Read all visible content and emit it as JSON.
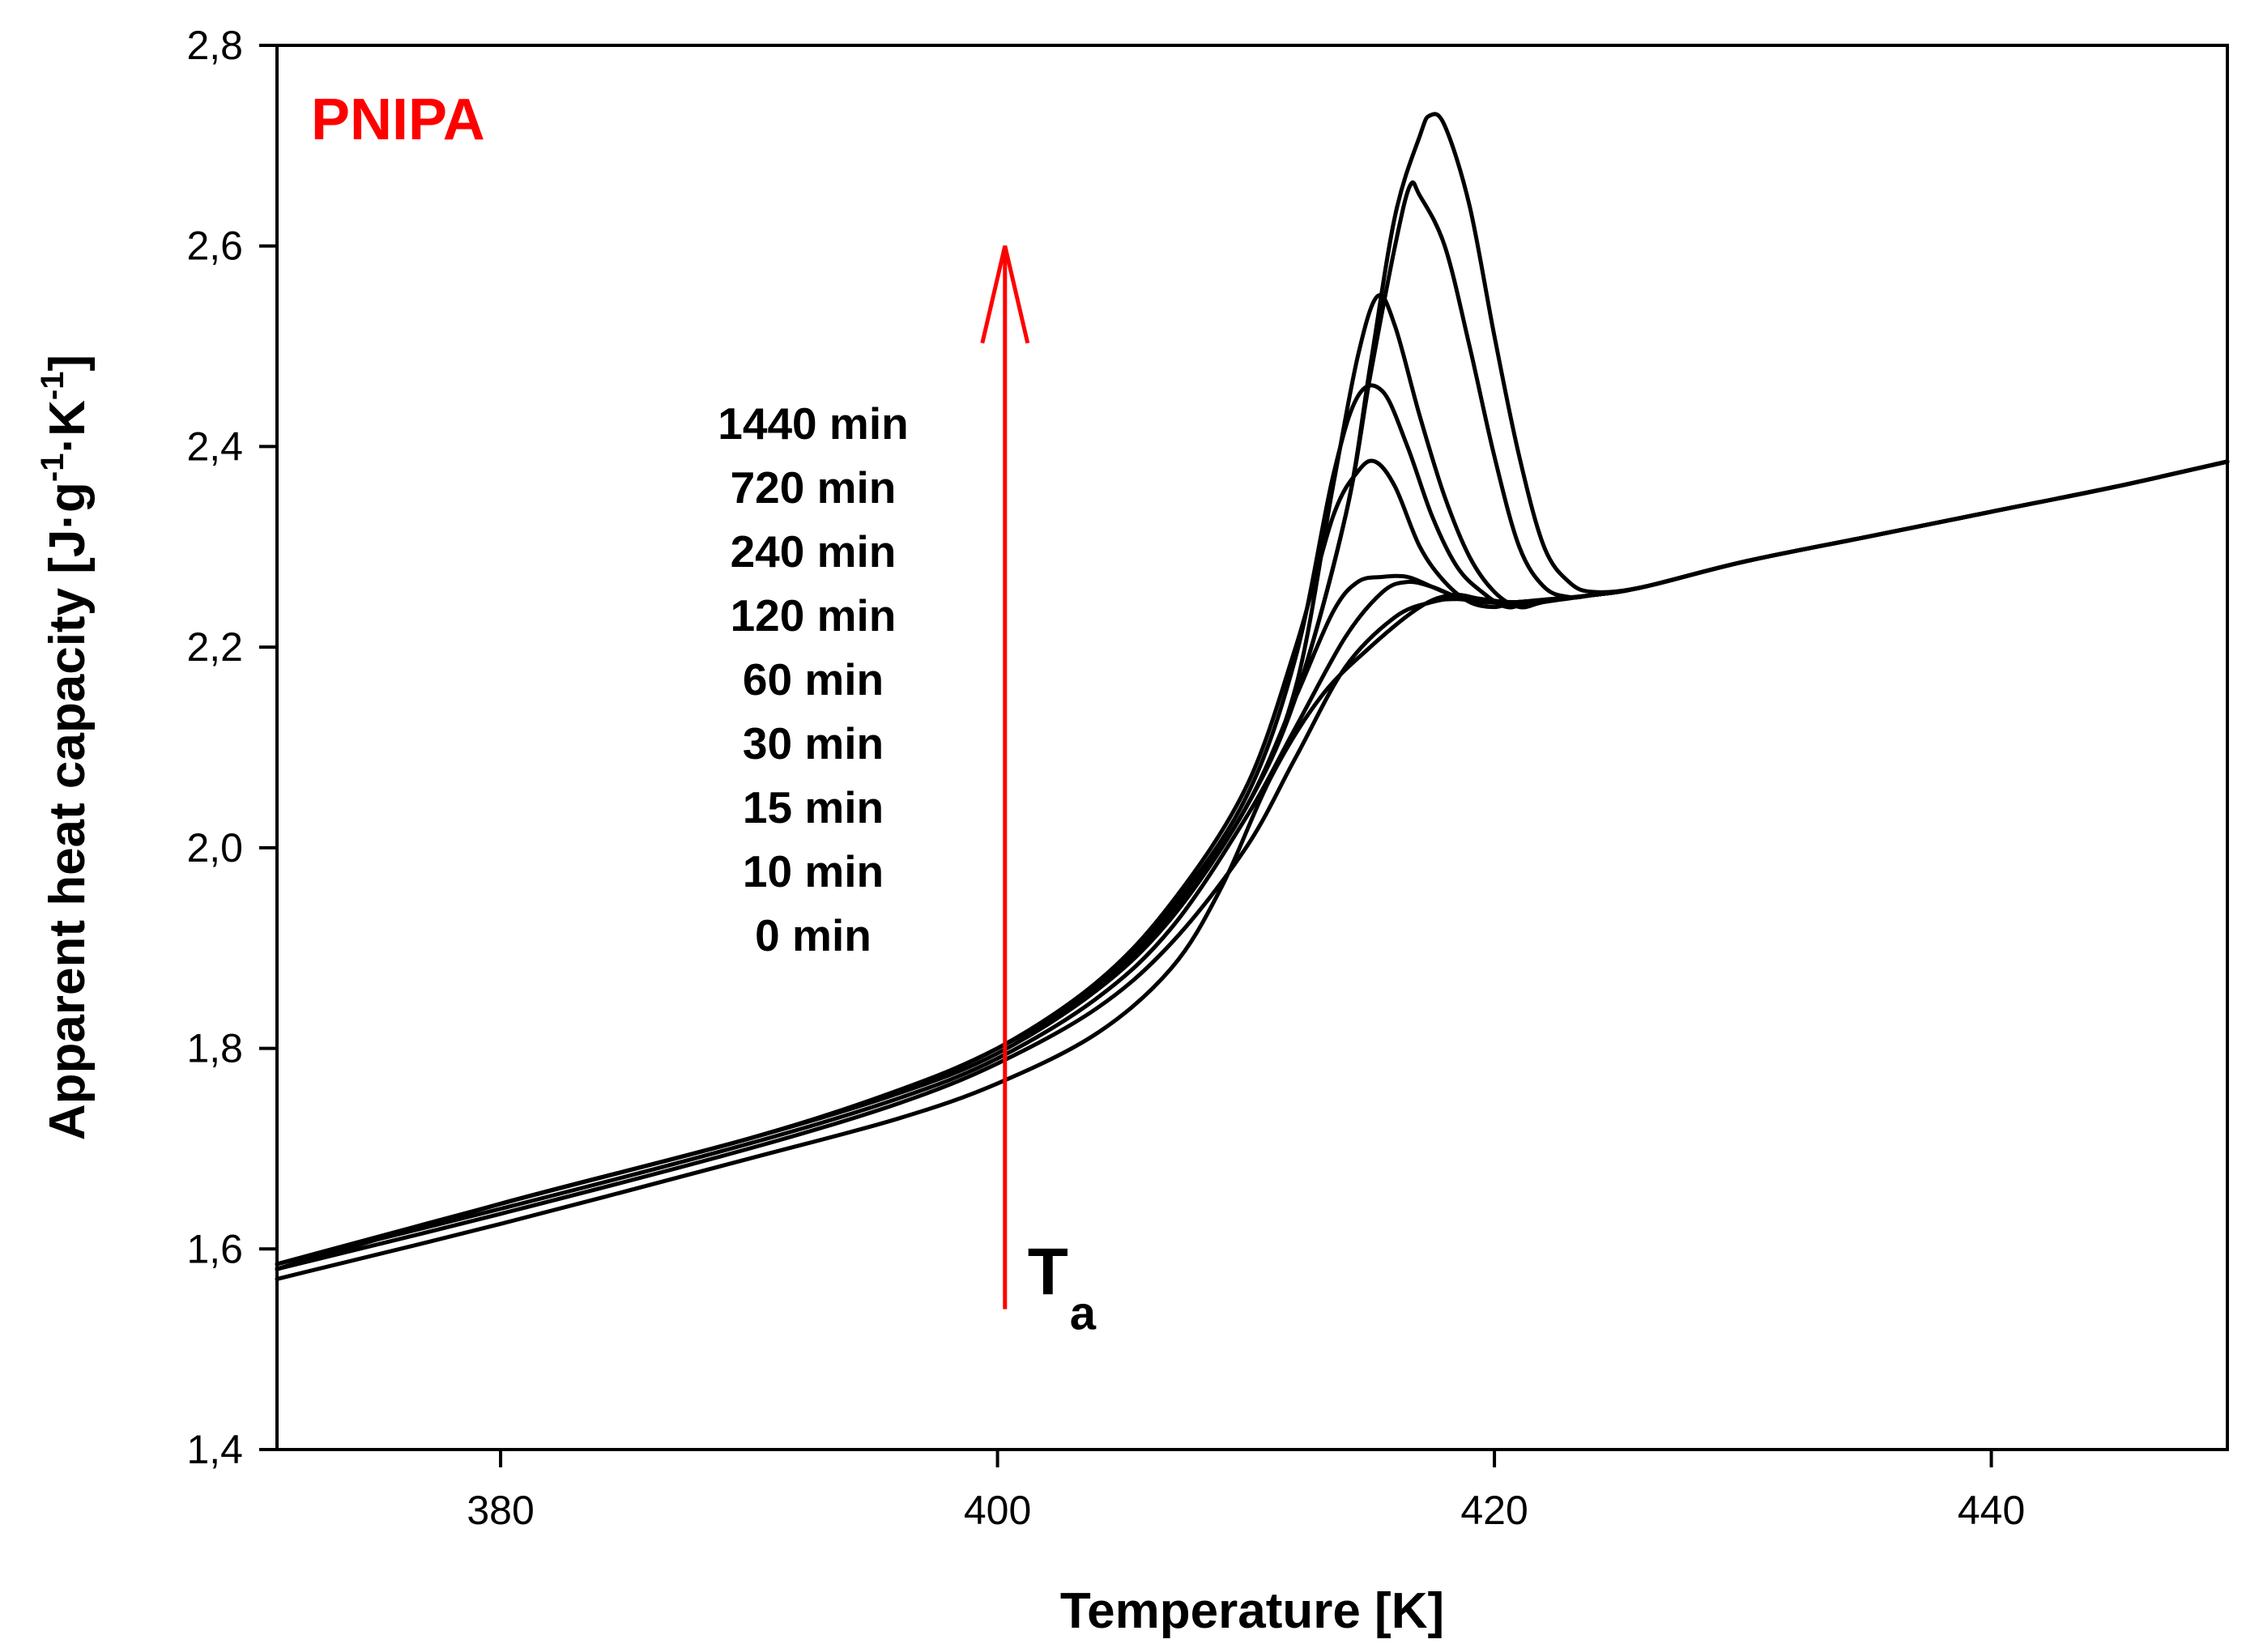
{
  "chart_data": {
    "type": "line",
    "title": "PNIPA",
    "title_color": "#ff0000",
    "xlabel": "Temperature [K]",
    "ylabel_parts": {
      "main": "Apparent heat capacity [J·g",
      "sup1": "-1",
      "mid": "·K",
      "sup2": "-1",
      "end": "]"
    },
    "xlim": [
      371,
      449.5
    ],
    "ylim": [
      1.4,
      2.8
    ],
    "x_ticks": [
      380,
      400,
      420,
      440
    ],
    "x_tick_labels": [
      "380",
      "400",
      "420",
      "440"
    ],
    "y_ticks": [
      1.4,
      1.6,
      1.8,
      2.0,
      2.2,
      2.4,
      2.6,
      2.8
    ],
    "y_tick_labels": [
      "1,4",
      "1,6",
      "1,8",
      "2,0",
      "2,2",
      "2,4",
      "2,6",
      "2,8"
    ],
    "grid": false,
    "legend_entries": [
      "1440 min",
      "720 min",
      "240 min",
      "120 min",
      "60 min",
      "30 min",
      "15 min",
      "10 min",
      "0 min"
    ],
    "annotation": {
      "label": "T",
      "subscript": "a",
      "arrow_color": "#ff0000",
      "arrow_x": 400.3,
      "arrow_y_from": 1.54,
      "arrow_y_to": 2.6
    },
    "series": [
      {
        "name": "1440 min",
        "x": [
          371,
          380,
          390,
          396,
          400,
          404,
          407,
          410,
          412,
          414,
          415,
          416,
          417,
          417.4,
          418,
          419,
          420,
          421,
          422,
          423,
          424,
          426,
          430,
          435,
          440,
          445,
          449.5
        ],
        "y": [
          1.58,
          1.645,
          1.71,
          1.758,
          1.8,
          1.86,
          1.93,
          2.04,
          2.15,
          2.33,
          2.48,
          2.63,
          2.71,
          2.73,
          2.72,
          2.64,
          2.51,
          2.39,
          2.3,
          2.265,
          2.255,
          2.26,
          2.285,
          2.31,
          2.335,
          2.36,
          2.385
        ]
      },
      {
        "name": "720 min",
        "x": [
          371,
          380,
          390,
          396,
          400,
          404,
          407,
          410,
          412,
          414,
          415,
          416,
          416.6,
          417,
          418,
          419,
          420,
          421,
          422,
          423,
          424,
          426,
          430,
          435,
          440,
          445,
          449.5
        ],
        "y": [
          1.58,
          1.645,
          1.71,
          1.758,
          1.8,
          1.86,
          1.93,
          2.04,
          2.15,
          2.33,
          2.47,
          2.6,
          2.66,
          2.65,
          2.6,
          2.5,
          2.39,
          2.3,
          2.26,
          2.25,
          2.252,
          2.26,
          2.285,
          2.31,
          2.335,
          2.36,
          2.385
        ]
      },
      {
        "name": "240 min",
        "x": [
          371,
          380,
          390,
          396,
          400,
          404,
          407,
          410,
          412,
          413.5,
          414.5,
          415.3,
          416,
          417,
          418,
          419,
          420,
          421,
          422,
          424,
          426,
          430,
          435,
          440,
          445,
          449.5
        ],
        "y": [
          1.58,
          1.645,
          1.71,
          1.758,
          1.8,
          1.862,
          1.935,
          2.04,
          2.16,
          2.36,
          2.49,
          2.55,
          2.52,
          2.43,
          2.35,
          2.29,
          2.255,
          2.24,
          2.245,
          2.252,
          2.26,
          2.285,
          2.31,
          2.335,
          2.36,
          2.385
        ]
      },
      {
        "name": "120 min",
        "x": [
          371,
          380,
          390,
          396,
          400,
          404,
          407,
          410,
          412,
          413.5,
          414.5,
          415.5,
          416.5,
          417.5,
          418.5,
          419.5,
          420.5,
          421.5,
          424,
          426,
          430,
          435,
          440,
          445,
          449.5
        ],
        "y": [
          1.58,
          1.645,
          1.71,
          1.758,
          1.8,
          1.864,
          1.94,
          2.05,
          2.19,
          2.37,
          2.45,
          2.455,
          2.4,
          2.33,
          2.28,
          2.255,
          2.24,
          2.245,
          2.252,
          2.26,
          2.285,
          2.31,
          2.335,
          2.36,
          2.385
        ]
      },
      {
        "name": "60 min",
        "x": [
          371,
          380,
          390,
          396,
          400,
          404,
          407,
          410,
          412,
          413.5,
          414.5,
          415.2,
          416,
          417,
          418,
          419,
          420,
          421,
          424,
          426,
          430,
          435,
          440,
          445,
          449.5
        ],
        "y": [
          1.58,
          1.645,
          1.71,
          1.758,
          1.8,
          1.866,
          1.945,
          2.06,
          2.2,
          2.33,
          2.375,
          2.385,
          2.36,
          2.3,
          2.265,
          2.245,
          2.24,
          2.245,
          2.252,
          2.26,
          2.285,
          2.31,
          2.335,
          2.36,
          2.385
        ]
      },
      {
        "name": "30 min",
        "x": [
          371,
          380,
          390,
          396,
          400,
          404,
          407,
          410,
          412,
          413.5,
          414.5,
          415.5,
          416.5,
          417.5,
          418.5,
          419.5,
          421,
          424,
          426,
          430,
          435,
          440,
          445,
          449.5
        ],
        "y": [
          1.585,
          1.645,
          1.71,
          1.755,
          1.795,
          1.858,
          1.93,
          2.04,
          2.15,
          2.235,
          2.265,
          2.27,
          2.27,
          2.26,
          2.25,
          2.245,
          2.245,
          2.252,
          2.26,
          2.285,
          2.31,
          2.335,
          2.36,
          2.385
        ]
      },
      {
        "name": "15 min",
        "x": [
          371,
          380,
          390,
          396,
          400,
          404,
          407,
          410,
          412,
          414,
          415.5,
          416.5,
          417.5,
          418.5,
          419.5,
          421,
          424,
          426,
          430,
          435,
          440,
          445,
          449.5
        ],
        "y": [
          1.585,
          1.64,
          1.705,
          1.75,
          1.79,
          1.85,
          1.92,
          2.03,
          2.12,
          2.21,
          2.255,
          2.265,
          2.26,
          2.25,
          2.245,
          2.245,
          2.252,
          2.26,
          2.285,
          2.31,
          2.335,
          2.36,
          2.385
        ]
      },
      {
        "name": "10 min",
        "x": [
          371,
          380,
          390,
          396,
          400,
          404,
          407,
          410,
          412,
          414,
          416,
          417.5,
          418.5,
          419.5,
          421,
          424,
          426,
          430,
          435,
          440,
          445,
          449.5
        ],
        "y": [
          1.58,
          1.635,
          1.7,
          1.745,
          1.785,
          1.84,
          1.905,
          2.0,
          2.09,
          2.18,
          2.23,
          2.245,
          2.248,
          2.245,
          2.245,
          2.252,
          2.26,
          2.285,
          2.31,
          2.335,
          2.36,
          2.385
        ]
      },
      {
        "name": "0 min",
        "x": [
          371,
          380,
          390,
          396,
          400,
          404,
          407,
          409,
          411,
          413,
          415,
          417,
          418.3,
          419.5,
          421,
          424,
          426,
          430,
          435,
          440,
          445,
          449.5
        ],
        "y": [
          1.57,
          1.625,
          1.69,
          1.73,
          1.765,
          1.815,
          1.88,
          1.96,
          2.07,
          2.15,
          2.2,
          2.24,
          2.252,
          2.248,
          2.245,
          2.252,
          2.26,
          2.285,
          2.31,
          2.335,
          2.36,
          2.385
        ]
      }
    ]
  }
}
